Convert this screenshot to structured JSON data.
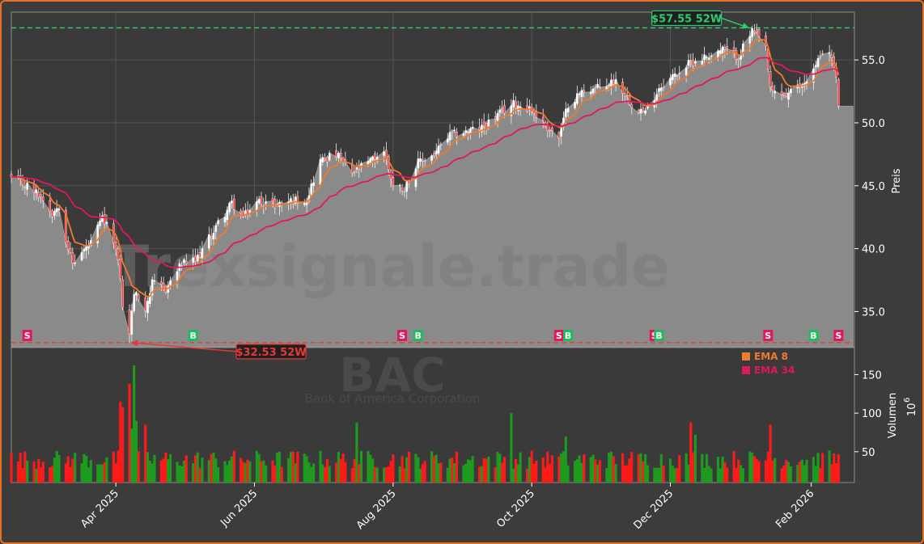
{
  "chart_data": [
    {
      "type": "candlestick",
      "panel": "price",
      "ticker": "BAC",
      "company": "Bank of America Corporation",
      "watermark": "Trexsignale.trade",
      "ylabel": "Preis",
      "ylim": [
        32.2,
        58.8
      ],
      "yticks": [
        35.0,
        40.0,
        45.0,
        50.0,
        55.0
      ],
      "ytick_labels": [
        "35.0",
        "40.0",
        "45.0",
        "50.0",
        "55.0"
      ],
      "xlim": [
        "2025-02-14",
        "2026-02-20"
      ],
      "xticks": [
        "2025-04-01",
        "2025-06-01",
        "2025-08-01",
        "2025-10-01",
        "2025-12-01",
        "2026-02-01"
      ],
      "xtick_labels": [
        "Apr 2025",
        "Jun 2025",
        "Aug 2025",
        "Oct 2025",
        "Dec 2025",
        "Feb 2026"
      ],
      "grid": true,
      "high_52w": {
        "value": 57.55,
        "label": "$57.55 52W",
        "date": "2026-01-06",
        "color": "#2ecc71"
      },
      "low_52w": {
        "value": 32.53,
        "label": "$32.53 52W",
        "date": "2025-04-07",
        "color": "#e53935"
      },
      "anchors": [
        {
          "date": "2025-02-14",
          "close": 45.6
        },
        {
          "date": "2025-02-21",
          "close": 45.0
        },
        {
          "date": "2025-02-28",
          "close": 44.0
        },
        {
          "date": "2025-03-04",
          "close": 42.8
        },
        {
          "date": "2025-03-07",
          "close": 43.5
        },
        {
          "date": "2025-03-10",
          "close": 40.8
        },
        {
          "date": "2025-03-13",
          "close": 38.8
        },
        {
          "date": "2025-03-17",
          "close": 39.7
        },
        {
          "date": "2025-03-21",
          "close": 40.4
        },
        {
          "date": "2025-03-26",
          "close": 42.4
        },
        {
          "date": "2025-03-31",
          "close": 40.8
        },
        {
          "date": "2025-04-03",
          "close": 37.8
        },
        {
          "date": "2025-04-04",
          "close": 35.2
        },
        {
          "date": "2025-04-07",
          "close": 33.3
        },
        {
          "date": "2025-04-09",
          "close": 36.5
        },
        {
          "date": "2025-04-14",
          "close": 35.3
        },
        {
          "date": "2025-04-17",
          "close": 37.2
        },
        {
          "date": "2025-04-23",
          "close": 36.8
        },
        {
          "date": "2025-04-30",
          "close": 38.8
        },
        {
          "date": "2025-05-06",
          "close": 39.0
        },
        {
          "date": "2025-05-12",
          "close": 40.8
        },
        {
          "date": "2025-05-16",
          "close": 42.0
        },
        {
          "date": "2025-05-22",
          "close": 43.6
        },
        {
          "date": "2025-05-27",
          "close": 42.5
        },
        {
          "date": "2025-06-03",
          "close": 43.8
        },
        {
          "date": "2025-06-10",
          "close": 43.5
        },
        {
          "date": "2025-06-17",
          "close": 43.8
        },
        {
          "date": "2025-06-24",
          "close": 44.0
        },
        {
          "date": "2025-06-30",
          "close": 47.0
        },
        {
          "date": "2025-07-07",
          "close": 47.5
        },
        {
          "date": "2025-07-14",
          "close": 46.0
        },
        {
          "date": "2025-07-21",
          "close": 46.8
        },
        {
          "date": "2025-07-28",
          "close": 47.8
        },
        {
          "date": "2025-08-01",
          "close": 45.0
        },
        {
          "date": "2025-08-06",
          "close": 44.8
        },
        {
          "date": "2025-08-12",
          "close": 46.8
        },
        {
          "date": "2025-08-19",
          "close": 47.5
        },
        {
          "date": "2025-08-26",
          "close": 49.0
        },
        {
          "date": "2025-09-02",
          "close": 49.3
        },
        {
          "date": "2025-09-09",
          "close": 49.6
        },
        {
          "date": "2025-09-16",
          "close": 50.6
        },
        {
          "date": "2025-09-23",
          "close": 51.5
        },
        {
          "date": "2025-09-30",
          "close": 51.2
        },
        {
          "date": "2025-10-07",
          "close": 49.8
        },
        {
          "date": "2025-10-13",
          "close": 48.8
        },
        {
          "date": "2025-10-17",
          "close": 51.5
        },
        {
          "date": "2025-10-24",
          "close": 52.6
        },
        {
          "date": "2025-10-31",
          "close": 52.8
        },
        {
          "date": "2025-11-07",
          "close": 53.4
        },
        {
          "date": "2025-11-14",
          "close": 51.5
        },
        {
          "date": "2025-11-20",
          "close": 50.8
        },
        {
          "date": "2025-11-26",
          "close": 52.8
        },
        {
          "date": "2025-12-03",
          "close": 53.8
        },
        {
          "date": "2025-12-10",
          "close": 54.8
        },
        {
          "date": "2025-12-17",
          "close": 55.3
        },
        {
          "date": "2025-12-24",
          "close": 55.8
        },
        {
          "date": "2025-12-31",
          "close": 55.3
        },
        {
          "date": "2026-01-06",
          "close": 57.3
        },
        {
          "date": "2026-01-12",
          "close": 56.0
        },
        {
          "date": "2026-01-14",
          "close": 52.5
        },
        {
          "date": "2026-01-21",
          "close": 52.2
        },
        {
          "date": "2026-01-28",
          "close": 53.0
        },
        {
          "date": "2026-02-03",
          "close": 54.5
        },
        {
          "date": "2026-02-06",
          "close": 55.8
        },
        {
          "date": "2026-02-10",
          "close": 55.2
        },
        {
          "date": "2026-02-12",
          "close": 53.4
        },
        {
          "date": "2026-02-13",
          "close": 51.5
        }
      ],
      "series": [
        {
          "name": "EMA 8",
          "color": "#f07a2e",
          "period": 8
        },
        {
          "name": "EMA 34",
          "color": "#e0195a",
          "period": 34
        }
      ],
      "up_color": "#2ecc71",
      "down_color": "#ff3b3b",
      "signals": [
        {
          "date": "2025-02-21",
          "label": "S",
          "color": "#e0195a"
        },
        {
          "date": "2025-05-05",
          "label": "B",
          "color": "#1bbf5a"
        },
        {
          "date": "2025-08-05",
          "label": "S",
          "color": "#e0195a"
        },
        {
          "date": "2025-08-12",
          "label": "B",
          "color": "#1bbf5a"
        },
        {
          "date": "2025-10-13",
          "label": "S",
          "color": "#e0195a"
        },
        {
          "date": "2025-10-17",
          "label": "B",
          "color": "#1bbf5a"
        },
        {
          "date": "2025-11-24",
          "label": "S",
          "color": "#e0195a"
        },
        {
          "date": "2025-11-26",
          "label": "B",
          "color": "#1bbf5a"
        },
        {
          "date": "2026-01-13",
          "label": "S",
          "color": "#e0195a"
        },
        {
          "date": "2026-02-02",
          "label": "B",
          "color": "#1bbf5a"
        },
        {
          "date": "2026-02-13",
          "label": "S",
          "color": "#e0195a"
        }
      ]
    },
    {
      "type": "bar",
      "panel": "volume",
      "ylabel": "Volumen",
      "yunit": "10",
      "yunit_exp": "6",
      "ylim": [
        10,
        185
      ],
      "yticks": [
        50,
        100,
        150
      ],
      "ytick_labels": [
        "50",
        "100",
        "150"
      ],
      "legend_position": "top-right",
      "legend": [
        {
          "name": "EMA 8",
          "color": "#f07a2e"
        },
        {
          "name": "EMA 34",
          "color": "#e0195a"
        }
      ],
      "up_color": "#1e9b1e",
      "down_color": "#ff1a1a",
      "spikes": [
        {
          "date": "2025-04-03",
          "value": 115
        },
        {
          "date": "2025-04-04",
          "value": 108
        },
        {
          "date": "2025-04-07",
          "value": 138
        },
        {
          "date": "2025-04-08",
          "value": 80
        },
        {
          "date": "2025-04-09",
          "value": 162
        },
        {
          "date": "2025-04-10",
          "value": 90
        },
        {
          "date": "2025-04-14",
          "value": 85
        },
        {
          "date": "2025-07-16",
          "value": 88
        },
        {
          "date": "2025-09-22",
          "value": 100
        },
        {
          "date": "2025-10-16",
          "value": 70
        },
        {
          "date": "2025-12-10",
          "value": 88
        },
        {
          "date": "2025-12-12",
          "value": 72
        },
        {
          "date": "2026-01-14",
          "value": 85
        },
        {
          "date": "2026-01-13",
          "value": 50
        }
      ]
    }
  ]
}
